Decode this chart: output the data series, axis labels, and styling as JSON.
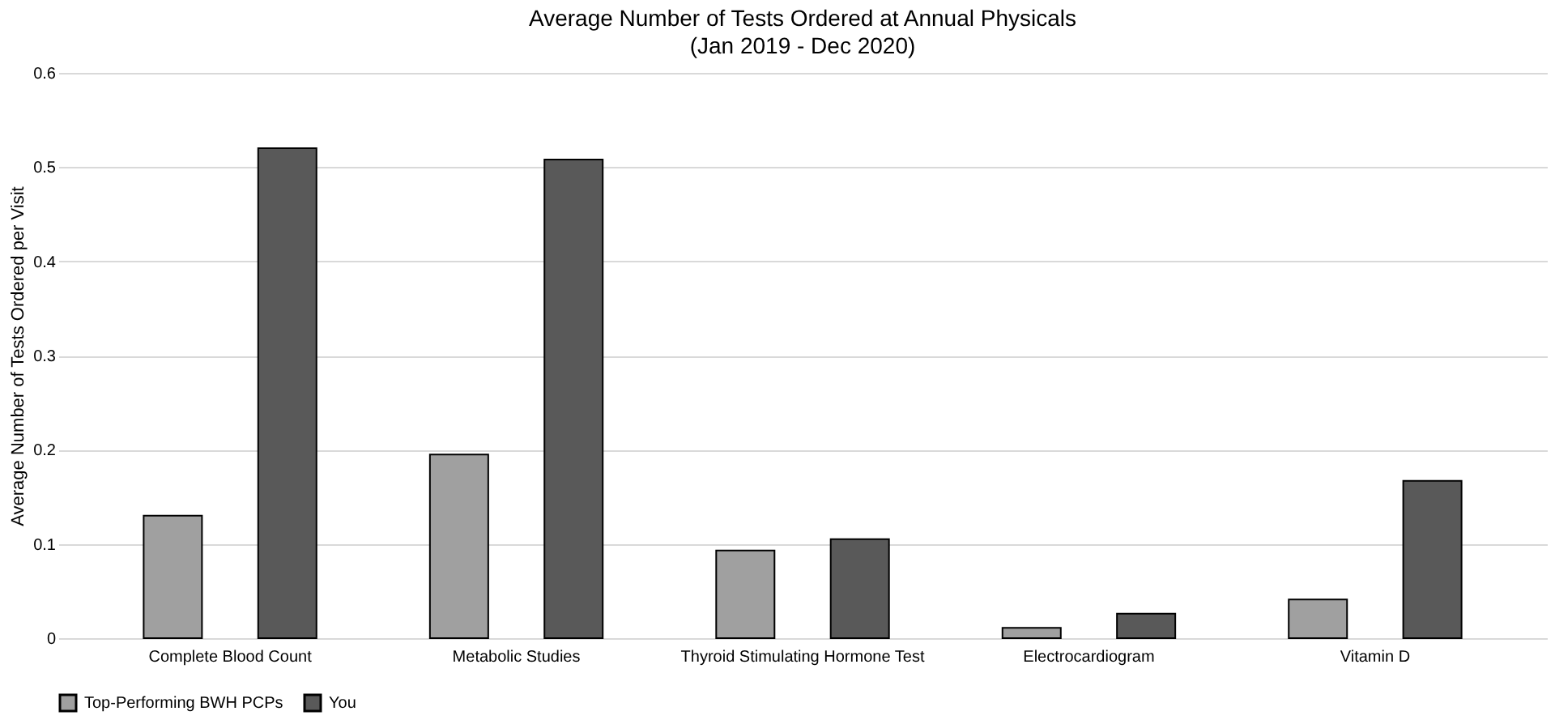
{
  "chart_data": {
    "type": "bar",
    "title": "Average Number of Tests Ordered at Annual Physicals",
    "subtitle": "(Jan 2019 - Dec 2020)",
    "ylabel": "Average Number of Tests Ordered per Visit",
    "categories": [
      "Complete Blood Count",
      "Metabolic Studies",
      "Thyroid Stimulating Hormone Test",
      "Electrocardiogram",
      "Vitamin D"
    ],
    "series": [
      {
        "name": "Top-Performing BWH PCPs",
        "color": "#a0a0a0",
        "values": [
          0.13,
          0.195,
          0.093,
          0.011,
          0.041
        ]
      },
      {
        "name": "You",
        "color": "#595959",
        "values": [
          0.52,
          0.508,
          0.105,
          0.026,
          0.167
        ]
      }
    ],
    "ylim": [
      0,
      0.6
    ],
    "yticks": [
      {
        "value": 0,
        "label": "0"
      },
      0.1,
      0.2,
      0.3,
      0.4,
      0.5,
      0.6
    ],
    "grid": "y",
    "legend": "bottom"
  }
}
